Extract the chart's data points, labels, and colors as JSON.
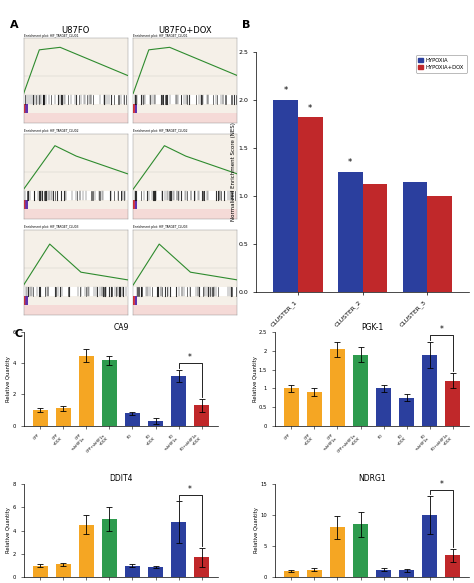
{
  "panel_A_title": "A",
  "panel_B_title": "B",
  "panel_C_title": "C",
  "gsea_left_title": "U87FO",
  "gsea_right_title": "U87FO+DOX",
  "bar_B_clusters": [
    "CLUSTER_1",
    "CLUSTER_2",
    "CLUSTER_3"
  ],
  "bar_B_hypoxia": [
    2.0,
    1.25,
    1.15
  ],
  "bar_B_hypoxia_dox": [
    1.82,
    1.12,
    1.0
  ],
  "bar_B_ylim": [
    0.0,
    2.5
  ],
  "bar_B_yticks": [
    0.0,
    0.5,
    1.0,
    1.5,
    2.0,
    2.5
  ],
  "bar_B_ylabel": "Normalized Enrichment Score (NES)",
  "bar_B_color_hypoxia": "#2B3F9E",
  "bar_B_color_dox": "#C0282A",
  "subplots_C": [
    {
      "title": "CA9",
      "ylabel": "Relative Quantity",
      "ylim": [
        0,
        6
      ],
      "yticks": [
        0,
        2,
        4,
        6
      ],
      "values": [
        1.0,
        1.1,
        4.5,
        4.2,
        0.8,
        0.3,
        3.2,
        1.3
      ],
      "errors": [
        0.1,
        0.15,
        0.4,
        0.3,
        0.1,
        0.2,
        0.4,
        0.4
      ]
    },
    {
      "title": "PGK-1",
      "ylabel": "Relative Quantity",
      "ylim": [
        0.0,
        2.5
      ],
      "yticks": [
        0.0,
        0.5,
        1.0,
        1.5,
        2.0,
        2.5
      ],
      "values": [
        1.0,
        0.9,
        2.05,
        1.9,
        1.0,
        0.75,
        1.9,
        1.2
      ],
      "errors": [
        0.1,
        0.1,
        0.2,
        0.2,
        0.1,
        0.1,
        0.35,
        0.2
      ]
    },
    {
      "title": "DDIT4",
      "ylabel": "Relative Quantity",
      "ylim": [
        0,
        8
      ],
      "yticks": [
        0,
        2,
        4,
        6,
        8
      ],
      "values": [
        1.0,
        1.1,
        4.5,
        5.0,
        1.0,
        0.9,
        4.7,
        1.7
      ],
      "errors": [
        0.1,
        0.1,
        0.8,
        1.0,
        0.1,
        0.1,
        1.8,
        0.8
      ]
    },
    {
      "title": "NDRG1",
      "ylabel": "Relative Quantity",
      "ylim": [
        0,
        15
      ],
      "yticks": [
        0,
        5,
        10,
        15
      ],
      "values": [
        1.0,
        1.2,
        8.0,
        8.5,
        1.2,
        1.1,
        10.0,
        3.5
      ],
      "errors": [
        0.2,
        0.2,
        1.8,
        2.0,
        0.2,
        0.2,
        3.0,
        1.0
      ]
    }
  ],
  "bar_colors": [
    "#F5A623",
    "#F5A623",
    "#F5A623",
    "#2E9B4E",
    "#2B3F9E",
    "#2B3F9E",
    "#2B3F9E",
    "#C0282A"
  ],
  "background_color": "#FFFFFF",
  "gsea_bg": "#F5F0E8",
  "gsea_curve_color": "#2E8B2E",
  "gsea_barcode_color_dark": "#1A1A1A",
  "gsea_red_band": "#CC3333",
  "gsea_blue_band": "#6688CC",
  "gsea_pink_band": "#FFAAAA"
}
